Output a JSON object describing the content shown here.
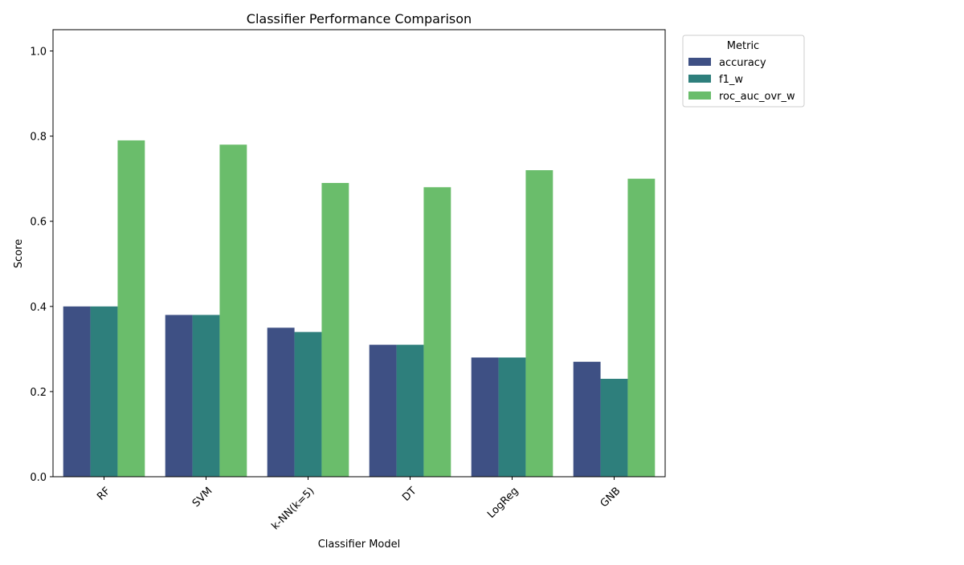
{
  "chart_data": {
    "type": "bar",
    "title": "Classifier Performance Comparison",
    "xlabel": "Classifier Model",
    "ylabel": "Score",
    "categories": [
      "RF",
      "SVM",
      "k-NN(k=5)",
      "DT",
      "LogReg",
      "GNB"
    ],
    "series": [
      {
        "name": "accuracy",
        "color": "#3e5084",
        "values": [
          0.4,
          0.38,
          0.35,
          0.31,
          0.28,
          0.27
        ]
      },
      {
        "name": "f1_w",
        "color": "#2e7f7c",
        "values": [
          0.4,
          0.38,
          0.34,
          0.31,
          0.28,
          0.23
        ]
      },
      {
        "name": "roc_auc_ovr_w",
        "color": "#6abd6b",
        "values": [
          0.79,
          0.78,
          0.69,
          0.68,
          0.72,
          0.7
        ]
      }
    ],
    "ylim": [
      0.0,
      1.05
    ],
    "yticks": [
      "0.0",
      "0.2",
      "0.4",
      "0.6",
      "0.8",
      "1.0"
    ],
    "grid": false,
    "legend": {
      "title": "Metric",
      "placement": "outside-top-right"
    }
  }
}
